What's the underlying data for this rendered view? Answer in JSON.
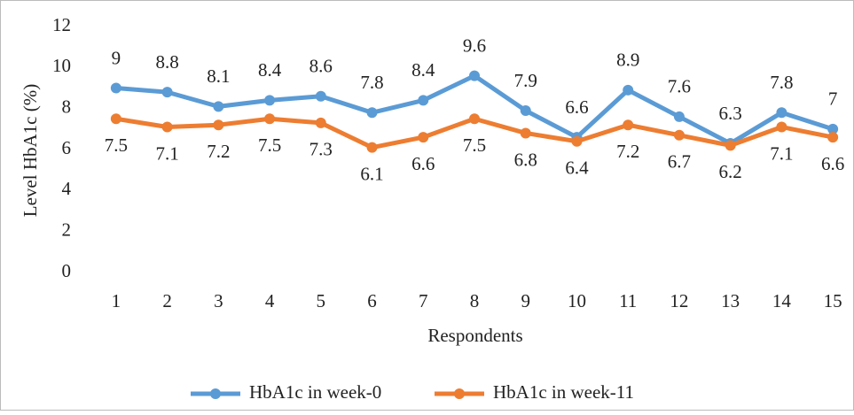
{
  "chart_data": {
    "type": "line",
    "xlabel": "Respondents",
    "ylabel": "Level  HbA1c (%)",
    "categories": [
      "1",
      "2",
      "3",
      "4",
      "5",
      "6",
      "7",
      "8",
      "9",
      "10",
      "11",
      "12",
      "13",
      "14",
      "15"
    ],
    "series": [
      {
        "name": "HbA1c in week-0",
        "color": "#5b9bd5",
        "values": [
          9,
          8.8,
          8.1,
          8.4,
          8.6,
          7.8,
          8.4,
          9.6,
          7.9,
          6.6,
          8.9,
          7.6,
          6.3,
          7.8,
          7
        ]
      },
      {
        "name": "HbA1c in week-11",
        "color": "#ed7d31",
        "values": [
          7.5,
          7.1,
          7.2,
          7.5,
          7.3,
          6.1,
          6.6,
          7.5,
          6.8,
          6.4,
          7.2,
          6.7,
          6.2,
          7.1,
          6.6
        ]
      }
    ],
    "ylim": [
      0,
      12
    ],
    "yticks": [
      0,
      2,
      4,
      6,
      8,
      10,
      12
    ],
    "grid": false,
    "legend": "bottom"
  }
}
